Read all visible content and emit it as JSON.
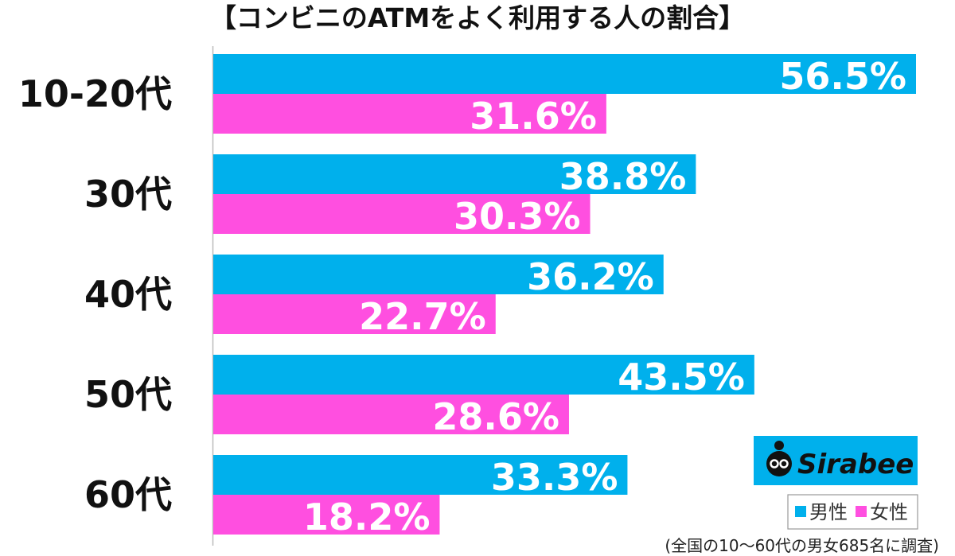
{
  "chart_data": {
    "type": "bar",
    "orientation": "horizontal",
    "title": "【コンビニのATMをよく利用する人の割合】",
    "categories": [
      "10-20代",
      "30代",
      "40代",
      "50代",
      "60代"
    ],
    "series": [
      {
        "name": "男性",
        "color": "#00b0ec",
        "values": [
          56.5,
          38.8,
          36.2,
          43.5,
          33.3
        ]
      },
      {
        "name": "女性",
        "color": "#ff4fe0",
        "values": [
          31.6,
          30.3,
          22.7,
          28.6,
          18.2
        ]
      }
    ],
    "value_suffix": "%",
    "xlim": [
      0,
      65
    ],
    "grid": false,
    "legend_position": "bottom-right",
    "source_note": "(全国の10〜60代の男女685名に調査)"
  },
  "branding": {
    "logo_text": "Sirabee",
    "logo_bg_color": "#00b0ec"
  }
}
